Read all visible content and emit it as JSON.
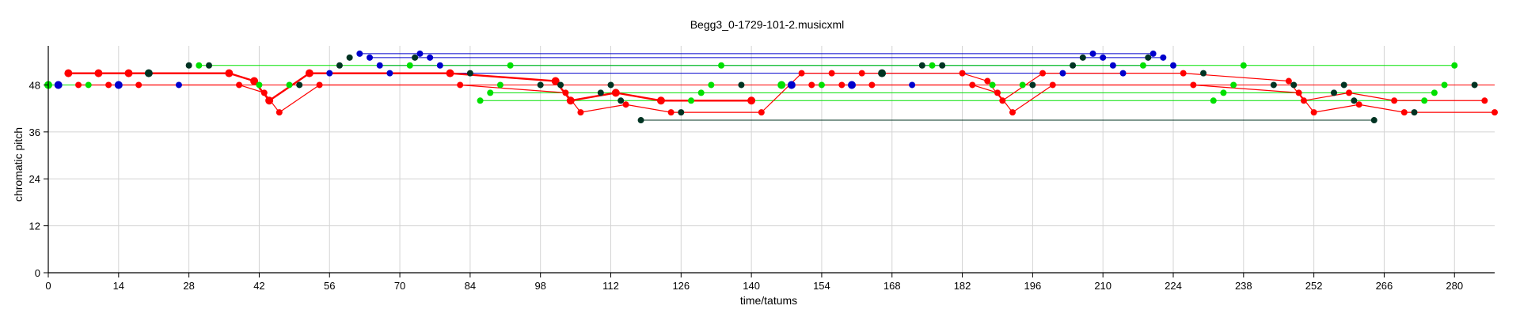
{
  "chart_data": {
    "type": "scatter",
    "title": "Begg3_0-1729-101-2.musicxml",
    "xlabel": "time/tatums",
    "ylabel": "chromatic pitch",
    "xlim": [
      0,
      288
    ],
    "ylim": [
      0,
      58
    ],
    "x_ticks": [
      0,
      14,
      28,
      42,
      56,
      70,
      84,
      98,
      112,
      126,
      140,
      154,
      168,
      182,
      196,
      210,
      224,
      238,
      252,
      266,
      280
    ],
    "y_ticks": [
      0,
      12,
      24,
      36,
      48
    ],
    "grid": true,
    "colors": {
      "red": "#ff0000",
      "green": "#00e000",
      "blue": "#0000cc",
      "black": "#003322"
    },
    "series": [
      {
        "color": "red",
        "points": [
          {
            "x": 4,
            "y": 51,
            "s": 5
          },
          {
            "x": 10,
            "y": 51,
            "s": 5
          },
          {
            "x": 16,
            "y": 51,
            "s": 5
          },
          {
            "x": 36,
            "y": 51,
            "s": 5
          },
          {
            "x": 41,
            "y": 49,
            "s": 5
          },
          {
            "x": 44,
            "y": 44,
            "s": 5
          },
          {
            "x": 52,
            "y": 51,
            "s": 5
          },
          {
            "x": 80,
            "y": 51,
            "s": 5
          },
          {
            "x": 101,
            "y": 49,
            "s": 5
          },
          {
            "x": 104,
            "y": 44,
            "s": 5
          },
          {
            "x": 113,
            "y": 46,
            "s": 5
          },
          {
            "x": 122,
            "y": 44,
            "s": 5
          },
          {
            "x": 140,
            "y": 44,
            "s": 5
          }
        ]
      },
      {
        "color": "red",
        "points": [
          {
            "x": 6,
            "y": 48,
            "s": 4
          },
          {
            "x": 12,
            "y": 48,
            "s": 4
          },
          {
            "x": 18,
            "y": 48,
            "s": 4
          },
          {
            "x": 38,
            "y": 48,
            "s": 4
          },
          {
            "x": 43,
            "y": 46,
            "s": 4
          },
          {
            "x": 46,
            "y": 41,
            "s": 4
          },
          {
            "x": 54,
            "y": 48,
            "s": 4
          },
          {
            "x": 82,
            "y": 48,
            "s": 4
          },
          {
            "x": 103,
            "y": 46,
            "s": 4
          },
          {
            "x": 106,
            "y": 41,
            "s": 4
          },
          {
            "x": 115,
            "y": 43,
            "s": 4
          },
          {
            "x": 124,
            "y": 41,
            "s": 4
          },
          {
            "x": 142,
            "y": 41,
            "s": 4
          },
          {
            "x": 150,
            "y": 51,
            "s": 4
          },
          {
            "x": 156,
            "y": 51,
            "s": 4
          },
          {
            "x": 162,
            "y": 51,
            "s": 4
          },
          {
            "x": 182,
            "y": 51,
            "s": 4
          },
          {
            "x": 187,
            "y": 49,
            "s": 4
          },
          {
            "x": 190,
            "y": 44,
            "s": 4
          },
          {
            "x": 198,
            "y": 51,
            "s": 4
          },
          {
            "x": 226,
            "y": 51,
            "s": 4
          },
          {
            "x": 247,
            "y": 49,
            "s": 4
          },
          {
            "x": 250,
            "y": 44,
            "s": 4
          },
          {
            "x": 259,
            "y": 46,
            "s": 4
          },
          {
            "x": 268,
            "y": 44,
            "s": 4
          },
          {
            "x": 286,
            "y": 44,
            "s": 4
          }
        ]
      },
      {
        "color": "red",
        "points": [
          {
            "x": 152,
            "y": 48,
            "s": 4
          },
          {
            "x": 158,
            "y": 48,
            "s": 4
          },
          {
            "x": 164,
            "y": 48,
            "s": 4
          },
          {
            "x": 184,
            "y": 48,
            "s": 4
          },
          {
            "x": 189,
            "y": 46,
            "s": 4
          },
          {
            "x": 192,
            "y": 41,
            "s": 4
          },
          {
            "x": 200,
            "y": 48,
            "s": 4
          },
          {
            "x": 228,
            "y": 48,
            "s": 4
          },
          {
            "x": 249,
            "y": 46,
            "s": 4
          },
          {
            "x": 252,
            "y": 41,
            "s": 4
          },
          {
            "x": 261,
            "y": 43,
            "s": 4
          },
          {
            "x": 270,
            "y": 41,
            "s": 4
          },
          {
            "x": 288,
            "y": 41,
            "s": 4
          }
        ]
      },
      {
        "color": "green",
        "points": [
          {
            "x": 0,
            "y": 48,
            "s": 5
          },
          {
            "x": 8,
            "y": 48,
            "s": 4
          },
          {
            "x": 30,
            "y": 53,
            "s": 4
          },
          {
            "x": 42,
            "y": 48,
            "s": 4
          },
          {
            "x": 48,
            "y": 48,
            "s": 4
          },
          {
            "x": 72,
            "y": 53,
            "s": 4
          },
          {
            "x": 86,
            "y": 44,
            "s": 4
          },
          {
            "x": 88,
            "y": 46,
            "s": 4
          },
          {
            "x": 90,
            "y": 48,
            "s": 4
          },
          {
            "x": 92,
            "y": 53,
            "s": 4
          },
          {
            "x": 128,
            "y": 44,
            "s": 4
          },
          {
            "x": 130,
            "y": 46,
            "s": 4
          },
          {
            "x": 132,
            "y": 48,
            "s": 4
          },
          {
            "x": 134,
            "y": 53,
            "s": 4
          },
          {
            "x": 146,
            "y": 48,
            "s": 5
          },
          {
            "x": 154,
            "y": 48,
            "s": 4
          },
          {
            "x": 176,
            "y": 53,
            "s": 4
          },
          {
            "x": 188,
            "y": 48,
            "s": 4
          },
          {
            "x": 194,
            "y": 48,
            "s": 4
          },
          {
            "x": 218,
            "y": 53,
            "s": 4
          },
          {
            "x": 232,
            "y": 44,
            "s": 4
          },
          {
            "x": 234,
            "y": 46,
            "s": 4
          },
          {
            "x": 236,
            "y": 48,
            "s": 4
          },
          {
            "x": 238,
            "y": 53,
            "s": 4
          },
          {
            "x": 274,
            "y": 44,
            "s": 4
          },
          {
            "x": 276,
            "y": 46,
            "s": 4
          },
          {
            "x": 278,
            "y": 48,
            "s": 4
          },
          {
            "x": 280,
            "y": 53,
            "s": 4
          }
        ]
      },
      {
        "color": "blue",
        "points": [
          {
            "x": 2,
            "y": 48,
            "s": 5
          },
          {
            "x": 14,
            "y": 48,
            "s": 5
          },
          {
            "x": 26,
            "y": 48,
            "s": 4
          },
          {
            "x": 56,
            "y": 51,
            "s": 4
          },
          {
            "x": 62,
            "y": 56,
            "s": 4
          },
          {
            "x": 64,
            "y": 55,
            "s": 4
          },
          {
            "x": 66,
            "y": 53,
            "s": 4
          },
          {
            "x": 68,
            "y": 51,
            "s": 4
          },
          {
            "x": 74,
            "y": 56,
            "s": 4
          },
          {
            "x": 76,
            "y": 55,
            "s": 4
          },
          {
            "x": 78,
            "y": 53,
            "s": 4
          },
          {
            "x": 148,
            "y": 48,
            "s": 5
          },
          {
            "x": 160,
            "y": 48,
            "s": 5
          },
          {
            "x": 172,
            "y": 48,
            "s": 4
          },
          {
            "x": 202,
            "y": 51,
            "s": 4
          },
          {
            "x": 208,
            "y": 56,
            "s": 4
          },
          {
            "x": 210,
            "y": 55,
            "s": 4
          },
          {
            "x": 212,
            "y": 53,
            "s": 4
          },
          {
            "x": 214,
            "y": 51,
            "s": 4
          },
          {
            "x": 220,
            "y": 56,
            "s": 4
          },
          {
            "x": 222,
            "y": 55,
            "s": 4
          },
          {
            "x": 224,
            "y": 53,
            "s": 4
          }
        ]
      },
      {
        "color": "black",
        "points": [
          {
            "x": 20,
            "y": 51,
            "s": 5
          },
          {
            "x": 28,
            "y": 53,
            "s": 4
          },
          {
            "x": 32,
            "y": 53,
            "s": 4
          },
          {
            "x": 50,
            "y": 48,
            "s": 4
          },
          {
            "x": 58,
            "y": 53,
            "s": 4
          },
          {
            "x": 60,
            "y": 55,
            "s": 4
          },
          {
            "x": 73,
            "y": 55,
            "s": 4
          },
          {
            "x": 84,
            "y": 51,
            "s": 4
          },
          {
            "x": 98,
            "y": 48,
            "s": 4
          },
          {
            "x": 102,
            "y": 48,
            "s": 4
          },
          {
            "x": 110,
            "y": 46,
            "s": 4
          },
          {
            "x": 112,
            "y": 48,
            "s": 4
          },
          {
            "x": 114,
            "y": 44,
            "s": 4
          },
          {
            "x": 118,
            "y": 39,
            "s": 4
          },
          {
            "x": 126,
            "y": 41,
            "s": 4
          },
          {
            "x": 138,
            "y": 48,
            "s": 4
          },
          {
            "x": 166,
            "y": 51,
            "s": 5
          },
          {
            "x": 174,
            "y": 53,
            "s": 4
          },
          {
            "x": 178,
            "y": 53,
            "s": 4
          },
          {
            "x": 196,
            "y": 48,
            "s": 4
          },
          {
            "x": 204,
            "y": 53,
            "s": 4
          },
          {
            "x": 206,
            "y": 55,
            "s": 4
          },
          {
            "x": 219,
            "y": 55,
            "s": 4
          },
          {
            "x": 230,
            "y": 51,
            "s": 4
          },
          {
            "x": 244,
            "y": 48,
            "s": 4
          },
          {
            "x": 248,
            "y": 48,
            "s": 4
          },
          {
            "x": 256,
            "y": 46,
            "s": 4
          },
          {
            "x": 258,
            "y": 48,
            "s": 4
          },
          {
            "x": 260,
            "y": 44,
            "s": 4
          },
          {
            "x": 264,
            "y": 39,
            "s": 4
          },
          {
            "x": 272,
            "y": 41,
            "s": 4
          },
          {
            "x": 284,
            "y": 48,
            "s": 4
          }
        ]
      }
    ],
    "segments": [
      {
        "color": "black",
        "x": [
          0,
          284
        ],
        "y": [
          48,
          48
        ]
      },
      {
        "color": "blue",
        "x": [
          62,
          220
        ],
        "y": [
          56,
          56
        ]
      },
      {
        "color": "blue",
        "x": [
          64,
          222
        ],
        "y": [
          55,
          55
        ]
      },
      {
        "color": "blue",
        "x": [
          66,
          224
        ],
        "y": [
          53,
          53
        ]
      },
      {
        "color": "blue",
        "x": [
          56,
          214
        ],
        "y": [
          51,
          51
        ]
      },
      {
        "color": "green",
        "x": [
          30,
          280
        ],
        "y": [
          53,
          53
        ]
      },
      {
        "color": "green",
        "x": [
          86,
          274
        ],
        "y": [
          44,
          44
        ]
      },
      {
        "color": "green",
        "x": [
          88,
          276
        ],
        "y": [
          46,
          46
        ]
      },
      {
        "color": "green",
        "x": [
          0,
          278
        ],
        "y": [
          48,
          48
        ]
      },
      {
        "color": "black",
        "x": [
          118,
          264
        ],
        "y": [
          39,
          39
        ]
      },
      {
        "color": "red",
        "x": [
          6,
          288
        ],
        "y": [
          48,
          48
        ]
      }
    ]
  }
}
